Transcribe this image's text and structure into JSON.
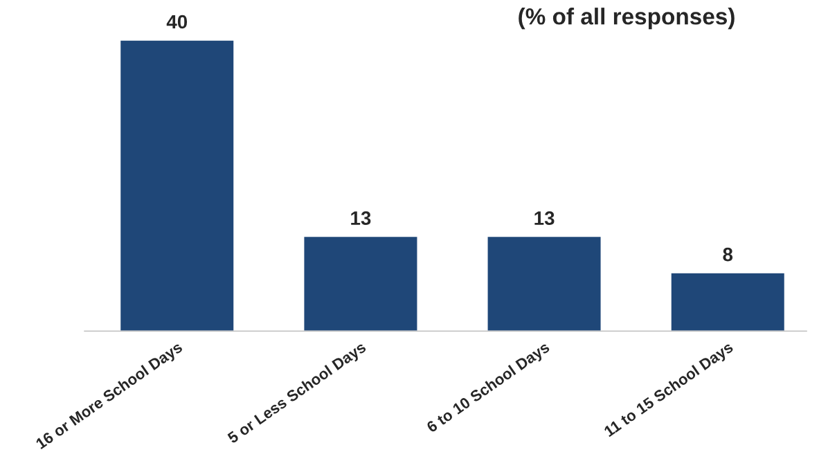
{
  "chart_data": {
    "type": "bar",
    "title": "(% of all responses)",
    "categories": [
      "16 or More School Days",
      "5 or Less School Days",
      "6 to 10 School Days",
      "11 to 15 School Days"
    ],
    "values": [
      40,
      13,
      13,
      8
    ],
    "color": "#1f4778",
    "data_labels": true,
    "grid": false,
    "legend": false
  }
}
